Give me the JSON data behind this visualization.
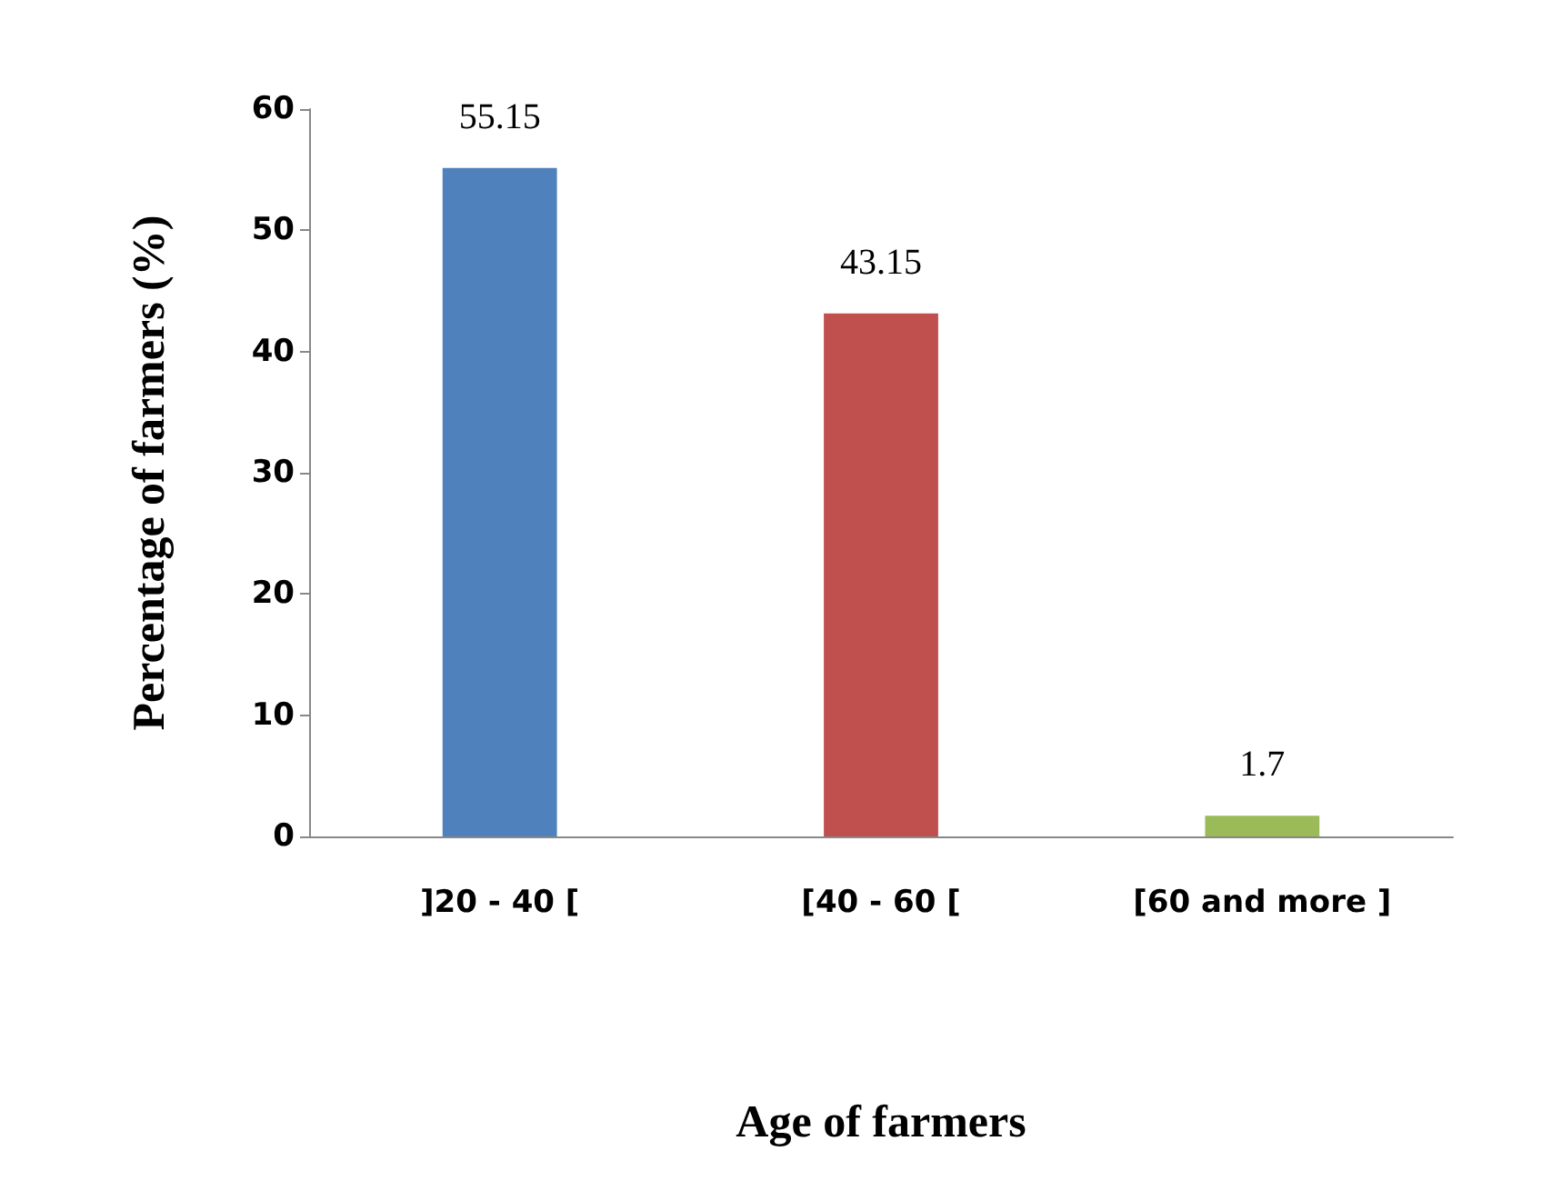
{
  "chart_data": {
    "type": "bar",
    "xlabel": "Age of farmers",
    "ylabel": "Percentage of farmers (%)",
    "categories": [
      "]20 - 40 [",
      "[40 - 60 [",
      "[60 and more ]"
    ],
    "values": [
      55.15,
      43.15,
      1.7
    ],
    "colors": [
      "#4f81bd",
      "#c0504d",
      "#9bbb59"
    ],
    "ylim": [
      0,
      60
    ],
    "yticks": [
      0,
      10,
      20,
      30,
      40,
      50,
      60
    ],
    "grid": false,
    "data_labels": true
  }
}
